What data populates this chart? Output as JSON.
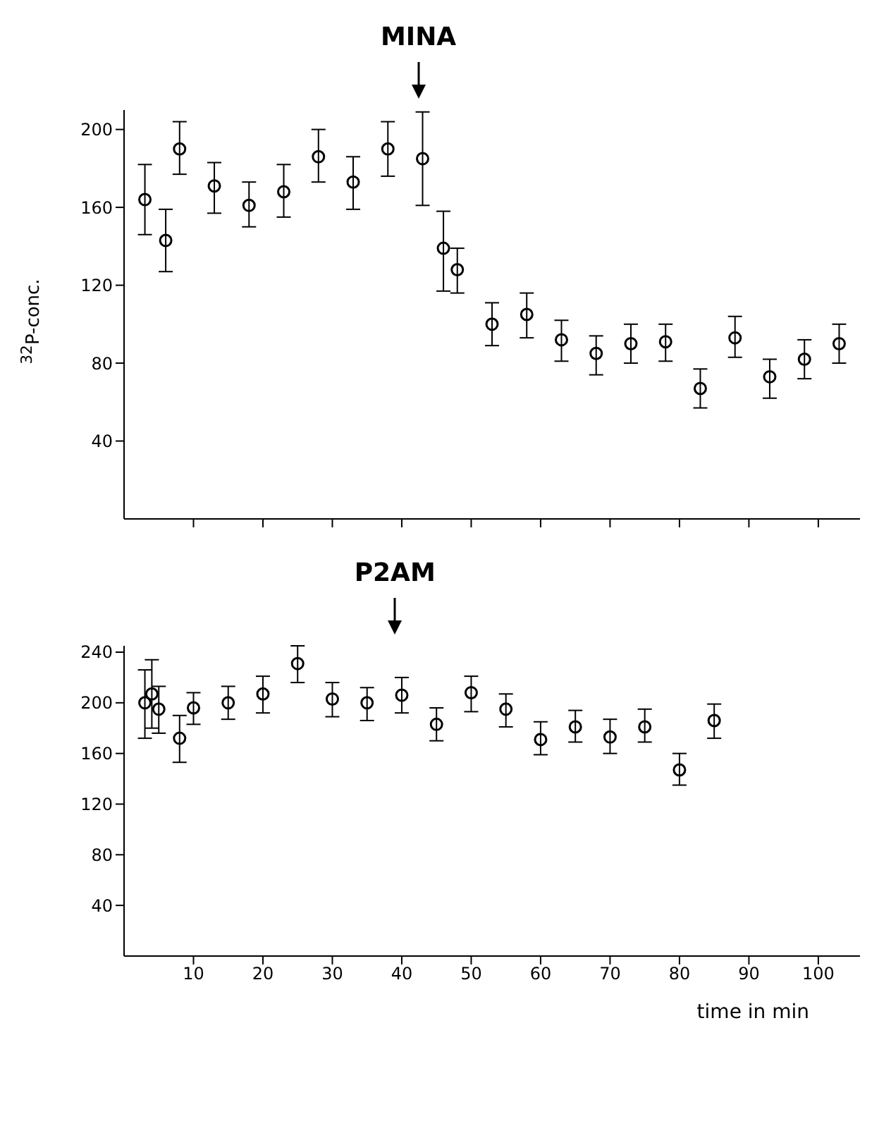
{
  "chart_data": [
    {
      "type": "scatter",
      "annotations": [
        "MINA"
      ],
      "ylabel": "$^{32}$P-conc.",
      "xlim": [
        0,
        106
      ],
      "xticks": [
        {
          "value": 10,
          "label": null
        },
        {
          "value": 20,
          "label": null
        },
        {
          "value": 30,
          "label": null
        },
        {
          "value": 40,
          "label": null
        },
        {
          "value": 50,
          "label": null
        },
        {
          "value": 60,
          "label": null
        },
        {
          "value": 70,
          "label": null
        },
        {
          "value": 80,
          "label": null
        },
        {
          "value": 90,
          "label": null
        },
        {
          "value": 100,
          "label": null
        }
      ],
      "ylim": [
        0,
        210
      ],
      "yticks": [
        40,
        80,
        120,
        160,
        200
      ],
      "tick_labels": "y",
      "marker": "circle",
      "series": [
        {
          "color": "#000000",
          "x": [
            3,
            6,
            8,
            13,
            18,
            23,
            28,
            33,
            38,
            43,
            46,
            48,
            53,
            58,
            63,
            68,
            73,
            78,
            83,
            88,
            93,
            98,
            103
          ],
          "values": [
            164,
            143,
            190,
            171,
            161,
            168,
            186,
            173,
            190,
            185,
            139,
            128,
            100,
            105,
            92,
            85,
            90,
            91,
            67,
            93,
            73,
            82,
            90
          ],
          "errors": [
            [
              146,
              182
            ],
            [
              127,
              159
            ],
            [
              177,
              204
            ],
            [
              157,
              183
            ],
            [
              150,
              173
            ],
            [
              155,
              182
            ],
            [
              173,
              200
            ],
            [
              159,
              186
            ],
            [
              176,
              204
            ],
            [
              161,
              209
            ],
            [
              117,
              158
            ],
            [
              116,
              139
            ],
            [
              89,
              111
            ],
            [
              93,
              116
            ],
            [
              81,
              102
            ],
            [
              74,
              94
            ],
            [
              80,
              100
            ],
            [
              81,
              100
            ],
            [
              57,
              77
            ],
            [
              83,
              104
            ],
            [
              62,
              82
            ],
            [
              72,
              92
            ],
            [
              80,
              100
            ]
          ]
        }
      ]
    },
    {
      "type": "scatter",
      "annotations": [
        "P2AM"
      ],
      "xlabel": "time in min",
      "xlim": [
        0,
        106
      ],
      "xticks": [
        10,
        20,
        30,
        40,
        50,
        60,
        70,
        80,
        90,
        100
      ],
      "ylim": [
        0,
        245
      ],
      "yticks": [
        40,
        80,
        120,
        160,
        200,
        240
      ],
      "marker": "circle",
      "series": [
        {
          "color": "#000000",
          "x": [
            3,
            4,
            5,
            8,
            10,
            15,
            20,
            25,
            30,
            35,
            40,
            45,
            50,
            55,
            60,
            65,
            70,
            75,
            80,
            85
          ],
          "values": [
            200,
            207,
            195,
            172,
            196,
            200,
            207,
            231,
            203,
            200,
            206,
            183,
            208,
            195,
            171,
            181,
            173,
            181,
            147,
            186
          ],
          "errors": [
            [
              172,
              226
            ],
            [
              180,
              234
            ],
            [
              176,
              213
            ],
            [
              153,
              190
            ],
            [
              183,
              208
            ],
            [
              187,
              213
            ],
            [
              192,
              221
            ],
            [
              216,
              245
            ],
            [
              189,
              216
            ],
            [
              186,
              212
            ],
            [
              192,
              220
            ],
            [
              170,
              196
            ],
            [
              193,
              221
            ],
            [
              181,
              207
            ],
            [
              159,
              185
            ],
            [
              169,
              194
            ],
            [
              160,
              187
            ],
            [
              169,
              195
            ],
            [
              135,
              160
            ],
            [
              172,
              199
            ]
          ]
        }
      ]
    }
  ]
}
